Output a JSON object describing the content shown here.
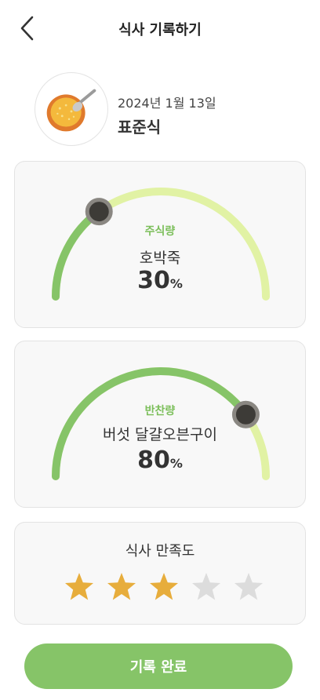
{
  "header": {
    "title": "식사 기록하기"
  },
  "meal": {
    "date": "2024년 1월 13일",
    "type": "표준식"
  },
  "gauges": [
    {
      "label": "주식량",
      "food": "호박죽",
      "value": "30",
      "unit": "%",
      "fraction": 0.3
    },
    {
      "label": "반찬량",
      "food": "버섯 달걀오븐구이",
      "value": "80",
      "unit": "%",
      "fraction": 0.8
    }
  ],
  "rating": {
    "title": "식사 만족도",
    "score": 3,
    "max": 5
  },
  "submit": {
    "label": "기록 완료"
  },
  "colors": {
    "accent": "#86c468",
    "gauge_filled": "#86c468",
    "gauge_track": "#e1f2a4",
    "knob": "#3d3b37",
    "star_on": "#e7ad3c",
    "star_off": "#dcdcdc"
  }
}
